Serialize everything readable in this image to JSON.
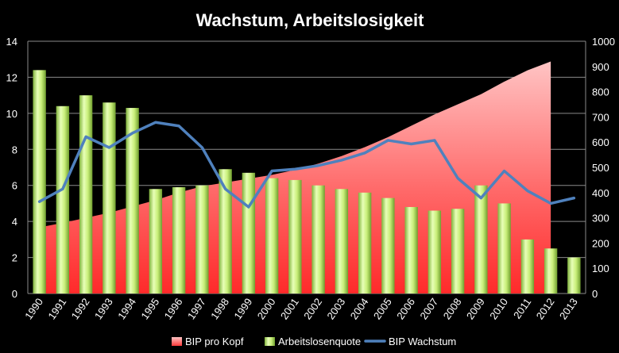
{
  "chart_data": {
    "type": "combo",
    "title": "Wachstum, Arbeitslosigkeit",
    "categories": [
      "1990",
      "1991",
      "1992",
      "1993",
      "1994",
      "1995",
      "1996",
      "1997",
      "1998",
      "1999",
      "2000",
      "2001",
      "2002",
      "2003",
      "2004",
      "2005",
      "2006",
      "2007",
      "2008",
      "2009",
      "2010",
      "2011",
      "2012",
      "2013"
    ],
    "left_axis": {
      "min": 0,
      "max": 14,
      "ticks": [
        0,
        2,
        4,
        6,
        8,
        10,
        12,
        14
      ]
    },
    "right_axis": {
      "min": 0,
      "max": 1000,
      "ticks": [
        0,
        100,
        200,
        300,
        400,
        500,
        600,
        700,
        800,
        900,
        1000
      ]
    },
    "grid": true,
    "legend_position": "bottom",
    "series": [
      {
        "name": "BIP pro Kopf",
        "type": "area",
        "axis": "right",
        "color": "#ff5a5a",
        "values": [
          262,
          280,
          300,
          320,
          345,
          370,
          400,
          425,
          440,
          455,
          470,
          490,
          515,
          545,
          580,
          620,
          665,
          710,
          750,
          790,
          840,
          885,
          920,
          null
        ]
      },
      {
        "name": "Arbeitslosenquote",
        "type": "bar",
        "axis": "left",
        "color": "#b5e05a",
        "values": [
          12.4,
          10.4,
          11.0,
          10.6,
          10.3,
          5.8,
          5.9,
          6.0,
          6.9,
          6.7,
          6.4,
          6.3,
          6.0,
          5.8,
          5.6,
          5.3,
          4.8,
          4.6,
          4.7,
          6.0,
          5.0,
          3.0,
          2.5,
          2.0
        ]
      },
      {
        "name": "BIP Wachstum",
        "type": "line",
        "axis": "left",
        "color": "#4f81bd",
        "values": [
          5.1,
          5.8,
          8.7,
          8.1,
          8.9,
          9.5,
          9.3,
          8.1,
          5.8,
          4.8,
          6.8,
          6.9,
          7.1,
          7.4,
          7.8,
          8.5,
          8.3,
          8.5,
          6.4,
          5.3,
          6.8,
          5.7,
          5.0,
          5.3
        ]
      }
    ]
  }
}
